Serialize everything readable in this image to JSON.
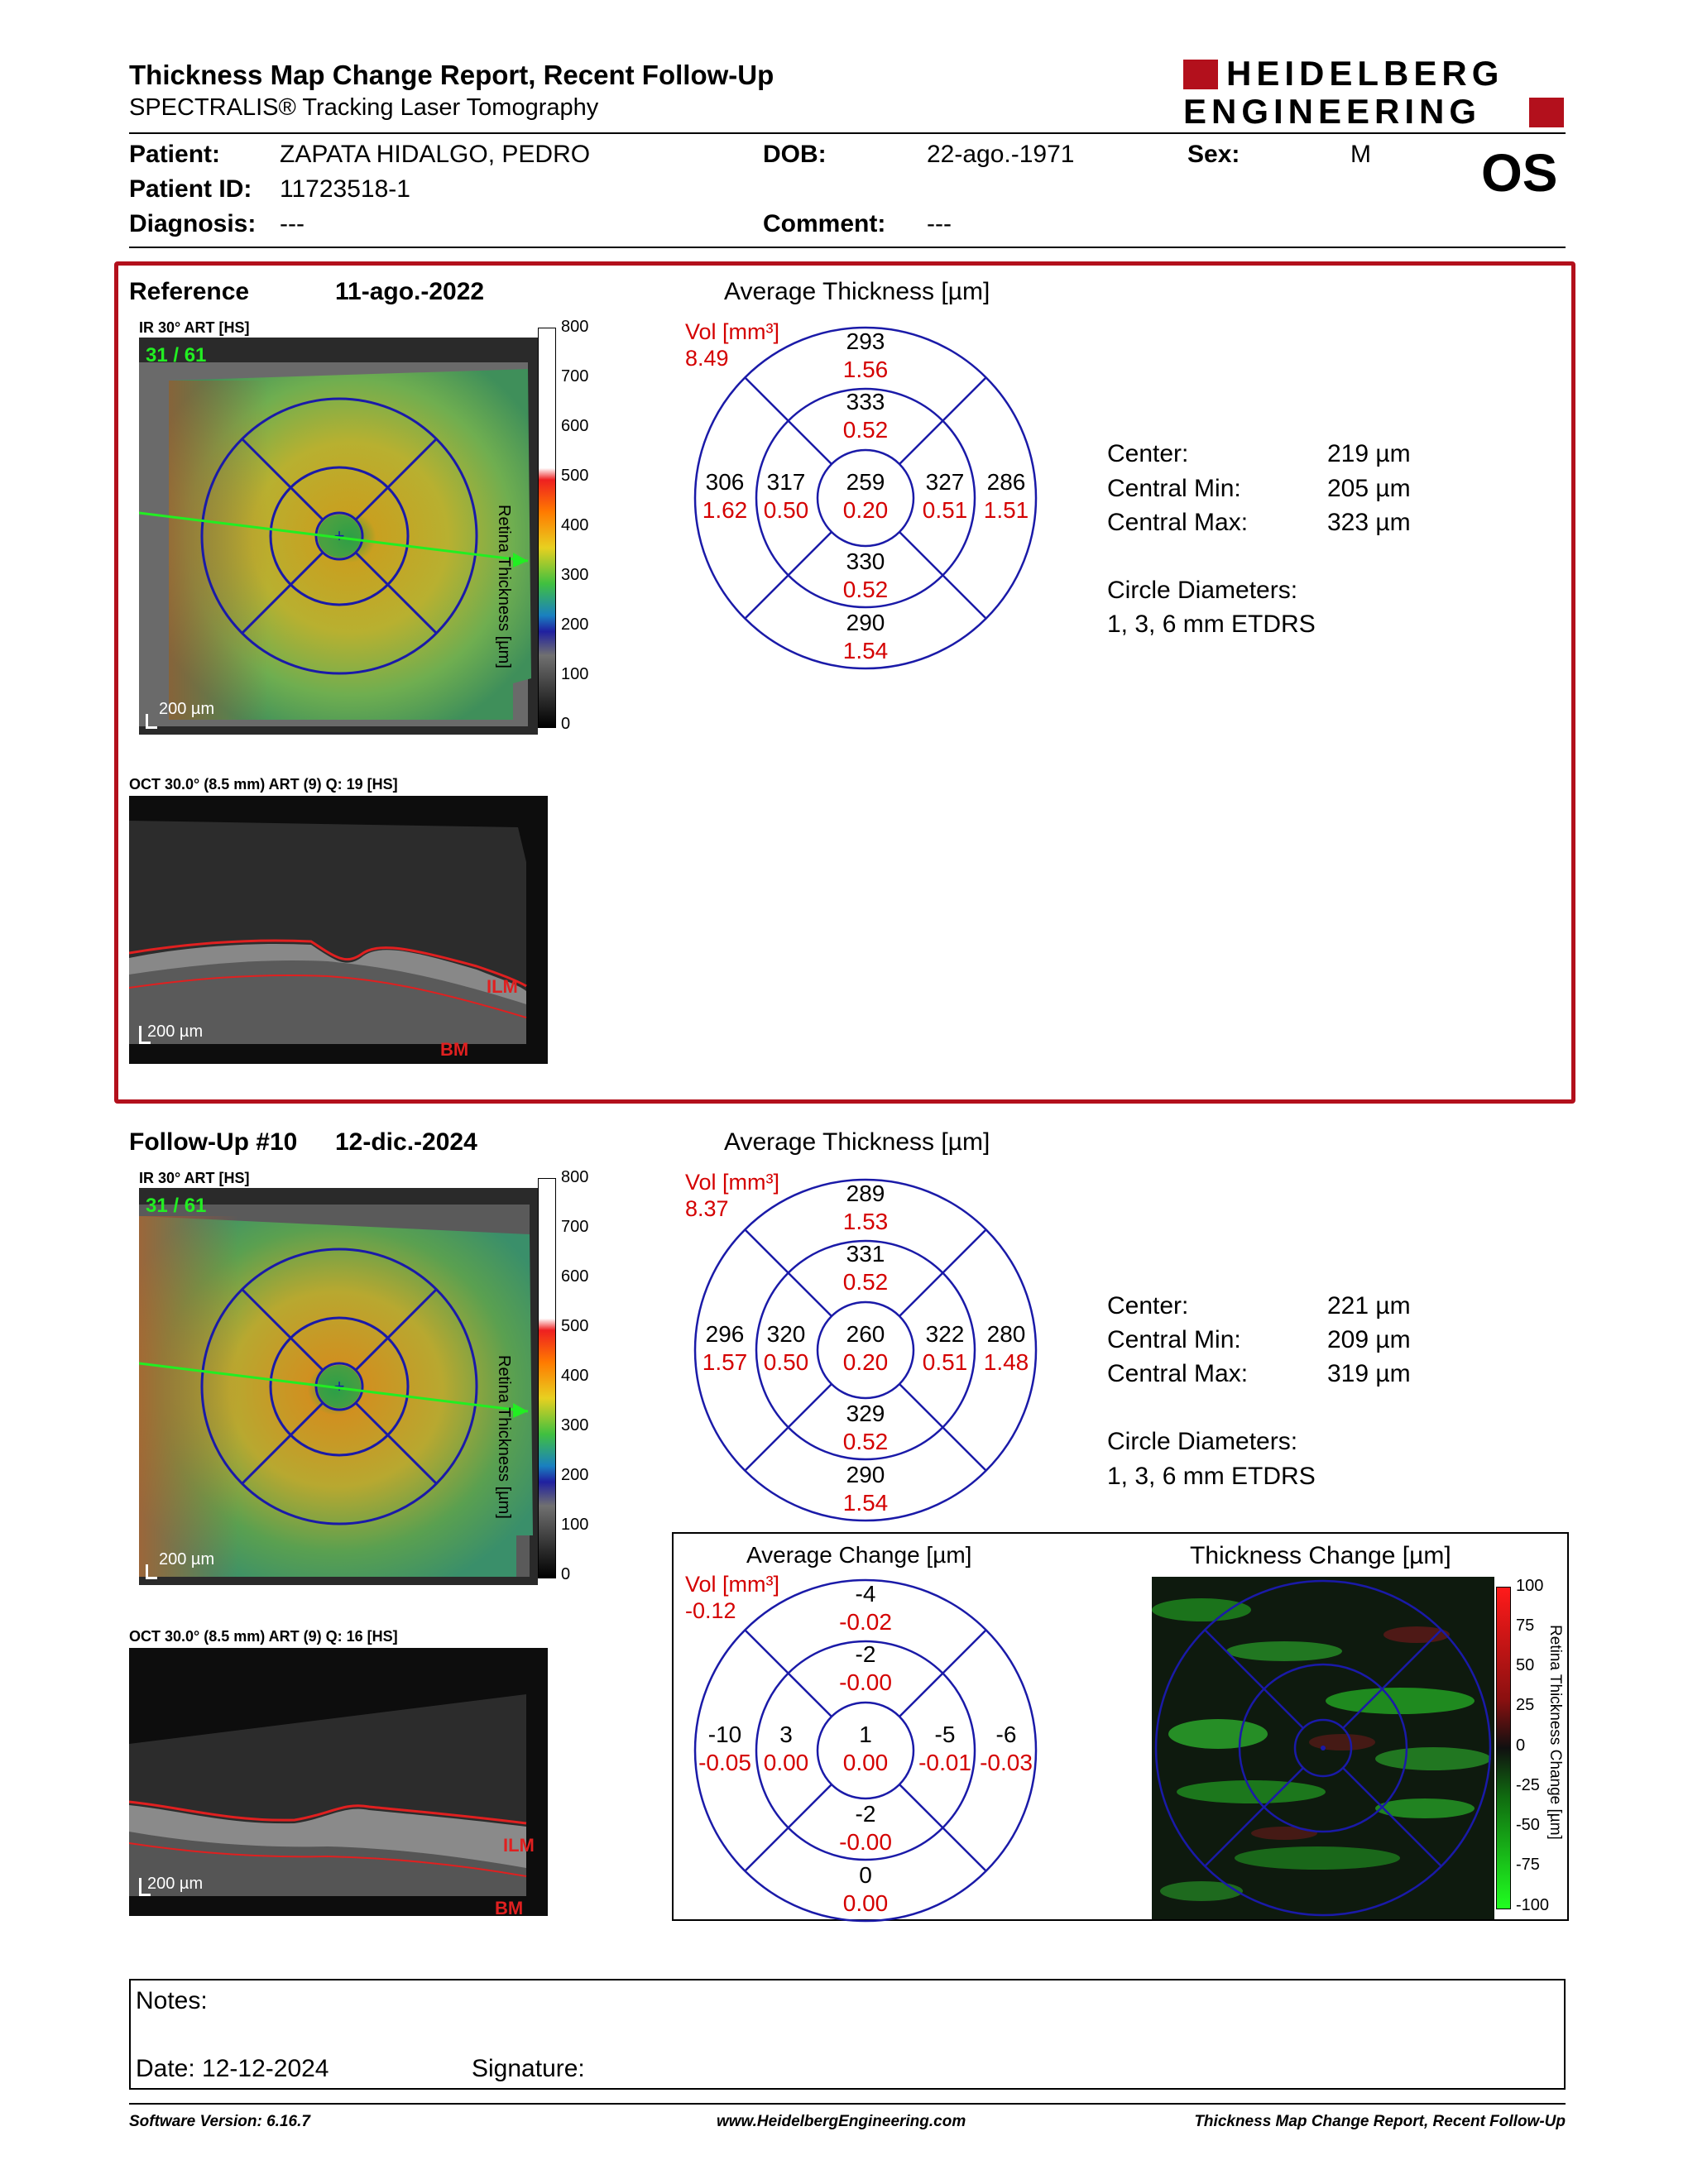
{
  "header": {
    "title": "Thickness Map Change Report, Recent Follow-Up",
    "subtitle": "SPECTRALIS® Tracking Laser Tomography",
    "logo_line1": "HEIDELBERG",
    "logo_line2": "ENGINEERING",
    "eye": "OS"
  },
  "patient": {
    "name_label": "Patient:",
    "name": "ZAPATA HIDALGO, PEDRO",
    "dob_label": "DOB:",
    "dob": "22-ago.-1971",
    "sex_label": "Sex:",
    "sex": "M",
    "id_label": "Patient ID:",
    "id": "11723518-1",
    "diagnosis_label": "Diagnosis:",
    "diagnosis": "---",
    "comment_label": "Comment:",
    "comment": "---"
  },
  "reference": {
    "label": "Reference",
    "date": "11-ago.-2022",
    "ir_caption": "IR 30° ART [HS]",
    "frame": "31 / 61",
    "scale": "200 µm",
    "oct_caption": "OCT 30.0° (8.5 mm) ART (9) Q: 19 [HS]",
    "oct_scale": "200 µm",
    "ilm": "ILM",
    "bm": "BM",
    "colorbar_ticks": [
      "800",
      "700",
      "600",
      "500",
      "400",
      "300",
      "200",
      "100",
      "0"
    ],
    "colorbar_title": "Retina Thickness [µm]",
    "chart_title": "Average Thickness [µm]",
    "vol_label": "Vol [mm³]",
    "vol_total": "8.49",
    "etdrs": {
      "outer_sup": [
        "293",
        "1.56"
      ],
      "inner_sup": [
        "333",
        "0.52"
      ],
      "outer_temp": [
        "306",
        "1.62"
      ],
      "inner_temp": [
        "317",
        "0.50"
      ],
      "center": [
        "259",
        "0.20"
      ],
      "inner_nasal": [
        "327",
        "0.51"
      ],
      "outer_nasal": [
        "286",
        "1.51"
      ],
      "inner_inf": [
        "330",
        "0.52"
      ],
      "outer_inf": [
        "290",
        "1.54"
      ]
    },
    "stats": {
      "center_label": "Center:",
      "center": "219 µm",
      "min_label": "Central Min:",
      "min": "205 µm",
      "max_label": "Central Max:",
      "max": "323 µm",
      "diam_label": "Circle Diameters:",
      "diam": "1, 3, 6 mm ETDRS"
    }
  },
  "followup": {
    "label": "Follow-Up #10",
    "date": "12-dic.-2024",
    "ir_caption": "IR 30° ART [HS]",
    "frame": "31 / 61",
    "scale": "200 µm",
    "oct_caption": "OCT 30.0° (8.5 mm) ART (9) Q: 16 [HS]",
    "oct_scale": "200 µm",
    "ilm": "ILM",
    "bm": "BM",
    "colorbar_ticks": [
      "800",
      "700",
      "600",
      "500",
      "400",
      "300",
      "200",
      "100",
      "0"
    ],
    "colorbar_title": "Retina Thickness [µm]",
    "chart_title": "Average Thickness [µm]",
    "vol_label": "Vol [mm³]",
    "vol_total": "8.37",
    "etdrs": {
      "outer_sup": [
        "289",
        "1.53"
      ],
      "inner_sup": [
        "331",
        "0.52"
      ],
      "outer_temp": [
        "296",
        "1.57"
      ],
      "inner_temp": [
        "320",
        "0.50"
      ],
      "center": [
        "260",
        "0.20"
      ],
      "inner_nasal": [
        "322",
        "0.51"
      ],
      "outer_nasal": [
        "280",
        "1.48"
      ],
      "inner_inf": [
        "329",
        "0.52"
      ],
      "outer_inf": [
        "290",
        "1.54"
      ]
    },
    "stats": {
      "center_label": "Center:",
      "center": "221 µm",
      "min_label": "Central Min:",
      "min": "209 µm",
      "max_label": "Central Max:",
      "max": "319 µm",
      "diam_label": "Circle Diameters:",
      "diam": "1, 3, 6 mm ETDRS"
    }
  },
  "change": {
    "chart_title": "Average Change [µm]",
    "vol_label": "Vol [mm³]",
    "vol_total": "-0.12",
    "etdrs": {
      "outer_sup": [
        "-4",
        "-0.02"
      ],
      "inner_sup": [
        "-2",
        "-0.00"
      ],
      "outer_temp": [
        "-10",
        "-0.05"
      ],
      "inner_temp": [
        "3",
        "0.00"
      ],
      "center": [
        "1",
        "0.00"
      ],
      "inner_nasal": [
        "-5",
        "-0.01"
      ],
      "outer_nasal": [
        "-6",
        "-0.03"
      ],
      "inner_inf": [
        "-2",
        "-0.00"
      ],
      "outer_inf": [
        "0",
        "0.00"
      ]
    },
    "map_title": "Thickness Change [µm]",
    "colorbar_ticks": [
      "100",
      "75",
      "50",
      "25",
      "0",
      "-25",
      "-50",
      "-75",
      "-100"
    ],
    "colorbar_title": "Retina Thickness Change [µm]"
  },
  "notes": {
    "label": "Notes:",
    "date": "Date: 12-12-2024",
    "signature": "Signature:"
  },
  "footer": {
    "software": "Software Version: 6.16.7",
    "website": "www.HeidelbergEngineering.com",
    "report": "Thickness Map Change Report, Recent Follow-Up"
  },
  "colors": {
    "frame_red": "#b3101c",
    "etdrs_blue": "#1a1aa8",
    "volume_red": "#d40000",
    "logo_red": "#b3101c"
  }
}
